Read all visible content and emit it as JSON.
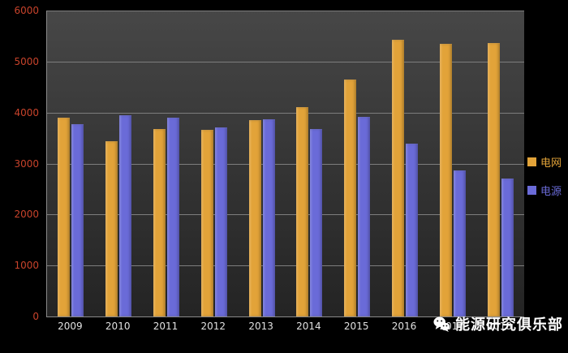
{
  "chart_data": {
    "type": "bar",
    "title": "",
    "xlabel": "",
    "ylabel": "",
    "categories": [
      "2009",
      "2010",
      "2011",
      "2012",
      "2013",
      "2014",
      "2015",
      "2016",
      "2017",
      "2018"
    ],
    "series": [
      {
        "name": "电网",
        "color": "#E2A339",
        "values": [
          3900,
          3430,
          3680,
          3660,
          3855,
          4110,
          4640,
          5425,
          5340,
          5370
        ]
      },
      {
        "name": "电源",
        "color": "#6A6BD8",
        "values": [
          3780,
          3955,
          3905,
          3715,
          3860,
          3670,
          3920,
          3385,
          2870,
          2710
        ]
      }
    ],
    "ylim": [
      0,
      6000
    ],
    "yticks": [
      0,
      1000,
      2000,
      3000,
      4000,
      5000,
      6000
    ],
    "grid": true,
    "legend_position": "right"
  },
  "legend": {
    "items": [
      {
        "label": "电网",
        "color": "#E2A339"
      },
      {
        "label": "电源",
        "color": "#6A6BD8"
      }
    ]
  },
  "watermark": {
    "icon": "wechat-icon",
    "text": "能源研究俱乐部"
  },
  "colors": {
    "background": "#000000",
    "plot_top": "#474747",
    "plot_bottom": "#242424",
    "gridline": "#7D7D7D",
    "axis_line": "#8A8A8A",
    "ytick_label": "#C8432B",
    "xtick_label": "#E0E0E0",
    "watermark_text": "#FFFFFF"
  }
}
